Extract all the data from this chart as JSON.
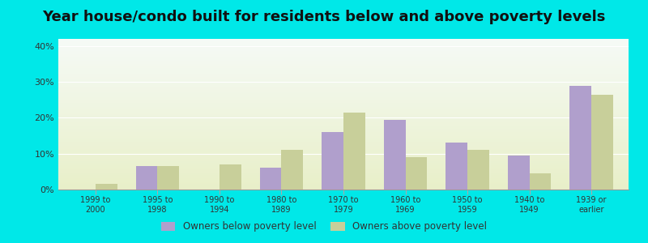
{
  "title": "Year house/condo built for residents below and above poverty levels",
  "categories": [
    "1999 to\n2000",
    "1995 to\n1998",
    "1990 to\n1994",
    "1980 to\n1989",
    "1970 to\n1979",
    "1960 to\n1969",
    "1950 to\n1959",
    "1940 to\n1949",
    "1939 or\nearlier"
  ],
  "below_poverty": [
    0,
    6.5,
    0,
    6.0,
    16.0,
    19.5,
    13.0,
    9.5,
    29.0
  ],
  "above_poverty": [
    1.5,
    6.5,
    7.0,
    11.0,
    21.5,
    9.0,
    11.0,
    4.5,
    26.5
  ],
  "below_color": "#b09fcc",
  "above_color": "#c8cf9a",
  "ylim": [
    0,
    42
  ],
  "yticks": [
    0,
    10,
    20,
    30,
    40
  ],
  "ytick_labels": [
    "0%",
    "10%",
    "20%",
    "30%",
    "40%"
  ],
  "background_top": "#e8f5ec",
  "background_bottom": "#eef5d8",
  "outer_bg": "#00e8e8",
  "legend_below": "Owners below poverty level",
  "legend_above": "Owners above poverty level",
  "title_fontsize": 13,
  "bar_width": 0.35
}
